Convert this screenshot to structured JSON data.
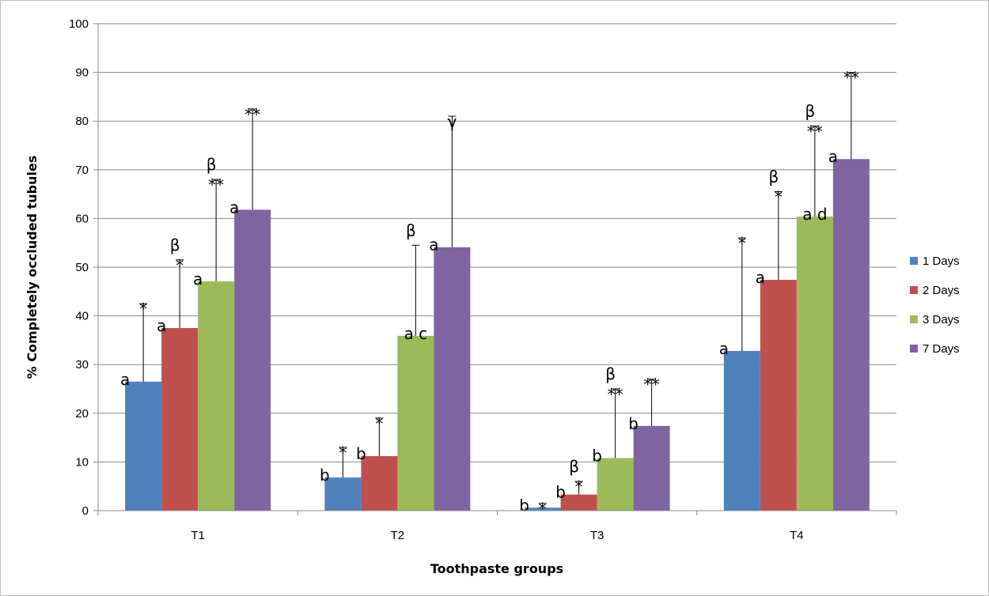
{
  "chart_data": {
    "type": "bar",
    "categories": [
      "T1",
      "T2",
      "T3",
      "T4"
    ],
    "series": [
      {
        "name": "1 Days",
        "color": "#4f81bd",
        "values": [
          26.5,
          6.8,
          0.6,
          32.8
        ],
        "errors": [
          42.5,
          13,
          1.5,
          56
        ],
        "labels": [
          [
            "a",
            "*"
          ],
          [
            "b",
            "*"
          ],
          [
            "b",
            "*"
          ],
          [
            "a",
            "*"
          ]
        ]
      },
      {
        "name": "2 Days",
        "color": "#c0504d",
        "values": [
          37.5,
          11.2,
          3.3,
          47.4
        ],
        "errors": [
          51.5,
          19,
          6,
          65.5
        ],
        "labels": [
          [
            "a",
            "*",
            "β"
          ],
          [
            "b",
            "*"
          ],
          [
            "b",
            "*",
            "β"
          ],
          [
            "a",
            "*",
            "β"
          ]
        ]
      },
      {
        "name": "3 Days",
        "color": "#9bbb59",
        "values": [
          47.1,
          35.9,
          10.8,
          60.4
        ],
        "errors": [
          68,
          54.5,
          25,
          79
        ],
        "labels": [
          [
            "a",
            "**",
            "β"
          ],
          [
            "a c",
            "",
            "β"
          ],
          [
            "b",
            "**",
            "β"
          ],
          [
            "a d",
            "**",
            "β"
          ]
        ]
      },
      {
        "name": "7 Days",
        "color": "#8064a2",
        "values": [
          61.8,
          54.1,
          17.4,
          72.2
        ],
        "errors": [
          82.5,
          81,
          27,
          90
        ],
        "labels": [
          [
            "a",
            "**"
          ],
          [
            "a",
            "γ"
          ],
          [
            "b",
            "**"
          ],
          [
            "a",
            "**"
          ]
        ]
      }
    ],
    "xlabel": "Toothpaste groups",
    "ylabel": "% Completely occluded tubules",
    "ylim": [
      0,
      100
    ],
    "yticks": [
      0,
      10,
      20,
      30,
      40,
      50,
      60,
      70,
      80,
      90,
      100
    ],
    "grid": true,
    "legend_position": "right"
  }
}
